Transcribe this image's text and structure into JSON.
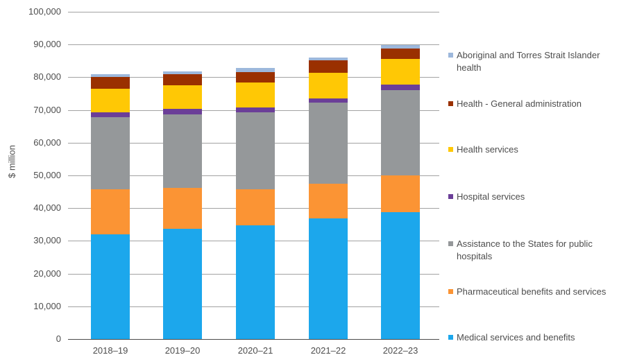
{
  "chart_data": {
    "type": "bar",
    "stacked": true,
    "title": "",
    "xlabel": "",
    "ylabel": "$ million",
    "ylim": [
      0,
      100000
    ],
    "ytick_interval": 10000,
    "ytick_labels": [
      "0",
      "10,000",
      "20,000",
      "30,000",
      "40,000",
      "50,000",
      "60,000",
      "70,000",
      "80,000",
      "90,000",
      "100,000"
    ],
    "grid": "horizontal",
    "legend_position": "right",
    "stack_order": "bottom-to-top",
    "legend_order": "top-of-stack-first",
    "categories": [
      "2018–19",
      "2019–20",
      "2020–21",
      "2021–22",
      "2022–23"
    ],
    "series": [
      {
        "name": "Medical services and benefits",
        "color": "#1CA7EC",
        "values": [
          32000,
          33600,
          34800,
          36800,
          38700
        ]
      },
      {
        "name": "Pharmaceutical benefits and services",
        "color": "#FB9434",
        "values": [
          13800,
          12600,
          11000,
          10700,
          11300
        ]
      },
      {
        "name": "Assistance to the States for public hospitals",
        "color": "#95989A",
        "values": [
          22000,
          22500,
          23500,
          24800,
          26100
        ]
      },
      {
        "name": "Hospital services",
        "color": "#6B3E98",
        "values": [
          1500,
          1600,
          1500,
          1300,
          1600
        ]
      },
      {
        "name": "Health services",
        "color": "#FFC805",
        "values": [
          7200,
          7300,
          7700,
          7800,
          7800
        ]
      },
      {
        "name": "Health - General administration",
        "color": "#9A3000",
        "values": [
          3500,
          3300,
          3100,
          3700,
          3300
        ]
      },
      {
        "name": "Aboriginal and Torres Strait Islander health",
        "color": "#9DB8DC",
        "values": [
          1000,
          900,
          1200,
          900,
          1000
        ]
      }
    ],
    "approx_totals": [
      81000,
      81800,
      82800,
      86000,
      89800
    ]
  },
  "style_colors": {
    "gridline": "#a2a2a2",
    "axis_line": "#4a4a4a",
    "text": "#4d4d4d",
    "background": "#ffffff"
  }
}
